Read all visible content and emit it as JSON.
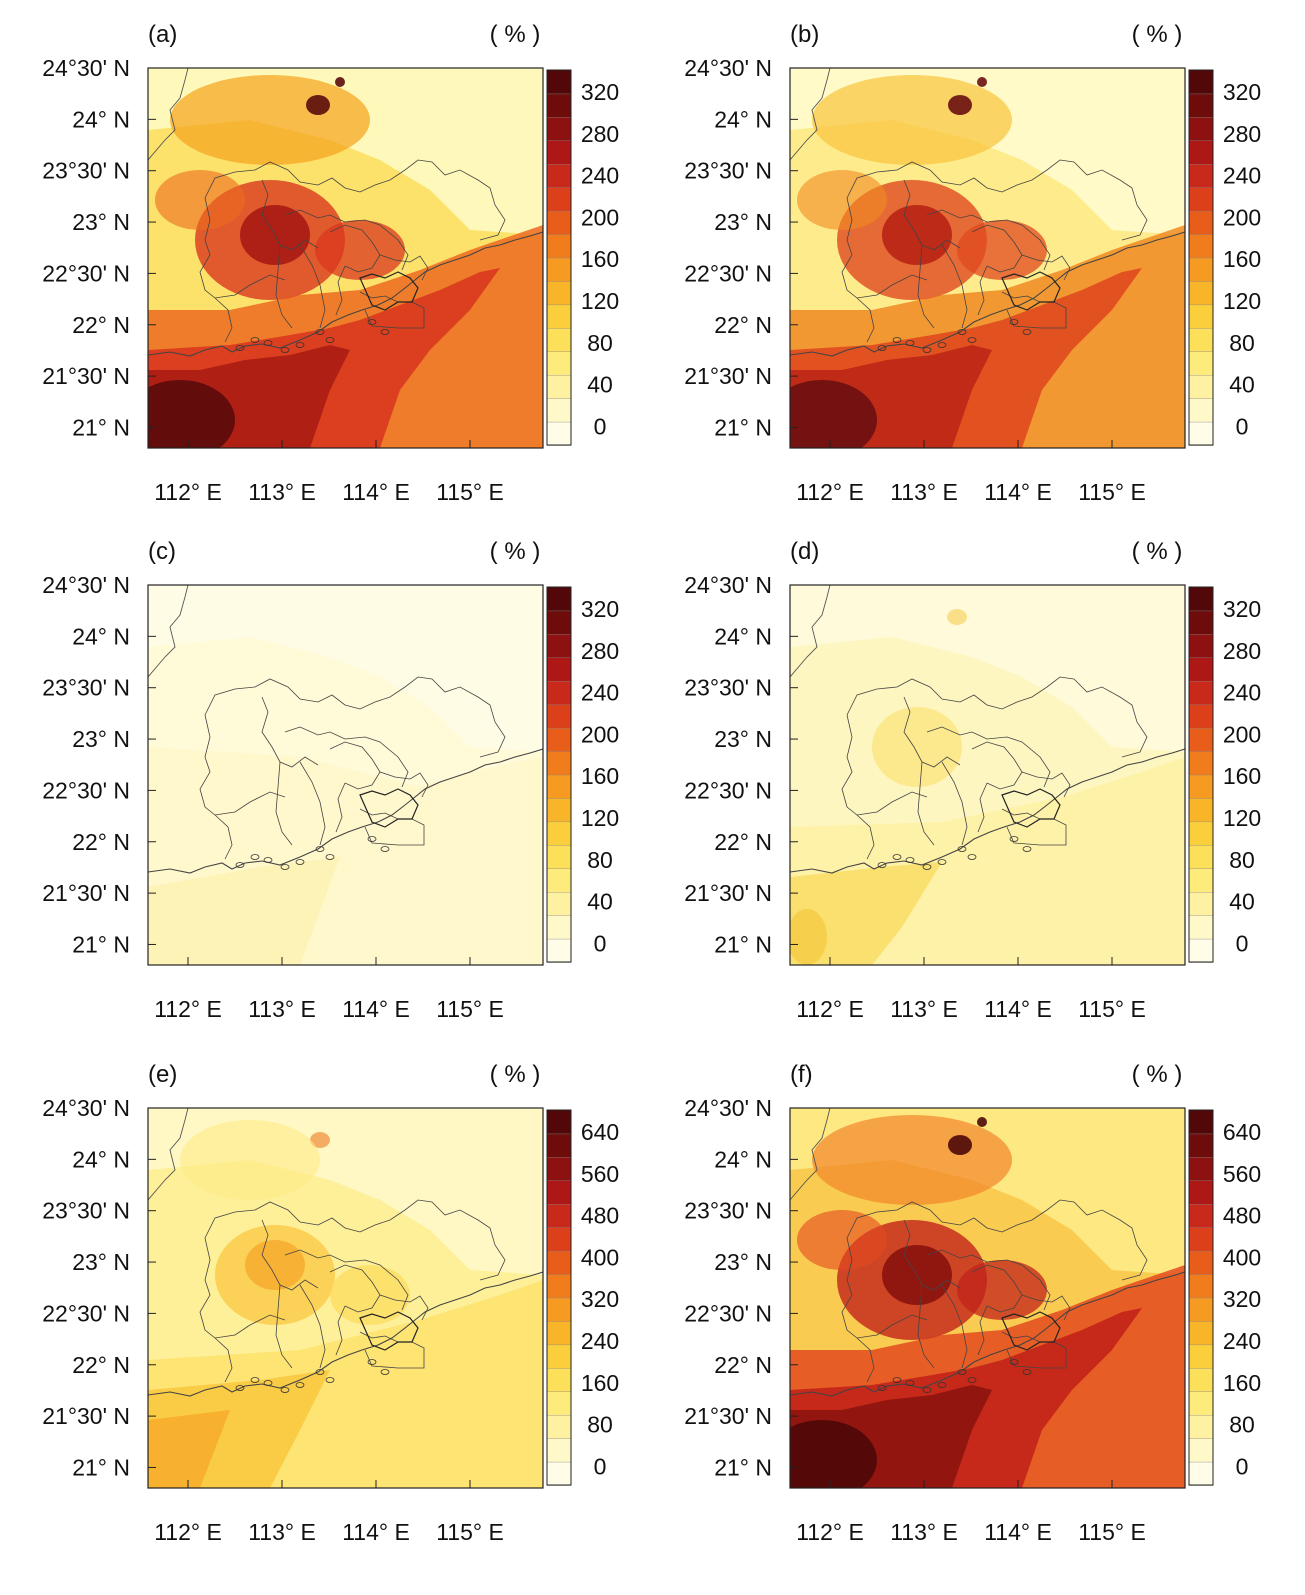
{
  "figure": {
    "panels": [
      {
        "label": "(a)",
        "unit": "( % )",
        "colorbar": {
          "max": 340,
          "ticks": [
            "320",
            "280",
            "240",
            "200",
            "160",
            "120",
            "80",
            "40",
            "0"
          ]
        },
        "colors": [
          "#5a0b0b",
          "#a81a13",
          "#d9381e",
          "#ec6a1e",
          "#f5a21c",
          "#fbd84a",
          "#fef6a6",
          "#fffde8"
        ]
      },
      {
        "label": "(b)",
        "unit": "( % )",
        "colorbar": {
          "max": 340,
          "ticks": [
            "320",
            "280",
            "240",
            "200",
            "160",
            "120",
            "80",
            "40",
            "0"
          ]
        },
        "colors": [
          "#6a0f0f",
          "#b82415",
          "#e04a1f",
          "#f08a22",
          "#f8c33a",
          "#fde574",
          "#fff8b8",
          "#fffdea"
        ]
      },
      {
        "label": "(c)",
        "unit": "( % )",
        "colorbar": {
          "max": 340,
          "ticks": [
            "320",
            "280",
            "240",
            "200",
            "160",
            "120",
            "80",
            "40",
            "0"
          ]
        },
        "colors": [
          "#f6e27a",
          "#fbe98f",
          "#fdeea0",
          "#fef3b5",
          "#fff6c4",
          "#fff9d2",
          "#fffbe0",
          "#fffdf0"
        ]
      },
      {
        "label": "(d)",
        "unit": "( % )",
        "colorbar": {
          "max": 340,
          "ticks": [
            "320",
            "280",
            "240",
            "200",
            "160",
            "120",
            "80",
            "40",
            "0"
          ]
        },
        "colors": [
          "#d9381e",
          "#f3c436",
          "#f8d855",
          "#fbe477",
          "#fdee98",
          "#fef4b5",
          "#fff9d2",
          "#fffdee"
        ]
      },
      {
        "label": "(e)",
        "unit": "( % )",
        "colorbar": {
          "max": 680,
          "ticks": [
            "640",
            "560",
            "480",
            "400",
            "320",
            "240",
            "160",
            "80",
            "0"
          ]
        },
        "colors": [
          "#a81a13",
          "#ec7a22",
          "#f5a526",
          "#f9c43a",
          "#fcdc5a",
          "#feeb86",
          "#fff5b6",
          "#fffde6"
        ]
      },
      {
        "label": "(f)",
        "unit": "( % )",
        "colorbar": {
          "max": 680,
          "ticks": [
            "640",
            "560",
            "480",
            "400",
            "320",
            "240",
            "160",
            "80",
            "0"
          ]
        },
        "colors": [
          "#4e0808",
          "#8a120e",
          "#c2231a",
          "#e34a1f",
          "#f1862a",
          "#f8bf3c",
          "#fde36e",
          "#fff4b2"
        ]
      }
    ],
    "axes": {
      "lat_ticks": [
        "24°30' N",
        "24° N",
        "23°30' N",
        "23° N",
        "22°30' N",
        "22° N",
        "21°30' N",
        "21° N"
      ],
      "lon_ticks": [
        "112° E",
        "113° E",
        "114° E",
        "115° E"
      ]
    },
    "colorbar_scale": [
      "#fffde8",
      "#fff8c8",
      "#fef2a2",
      "#fdeb7c",
      "#fde05a",
      "#fbcf3c",
      "#f9b529",
      "#f69a21",
      "#f07c1c",
      "#e85d1a",
      "#dc401b",
      "#c8291a",
      "#ad1816",
      "#8d1111",
      "#6e0c0c",
      "#520808"
    ]
  }
}
